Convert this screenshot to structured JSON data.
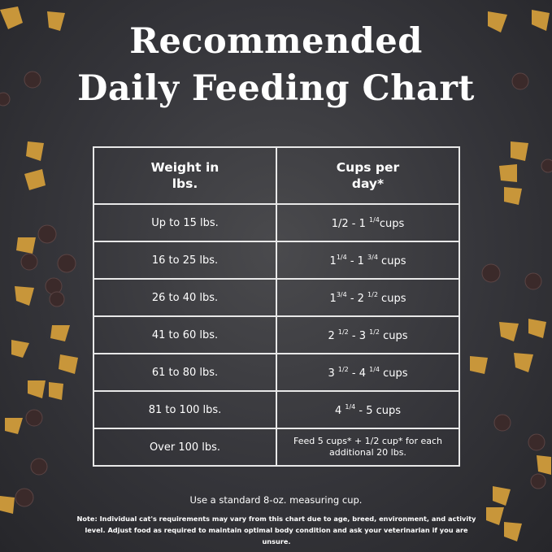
{
  "header": {
    "title": [
      "Recommended",
      "Daily Feeding Chart"
    ]
  },
  "table": {
    "columns": [
      "Weight in lbs.",
      "Cups per day*"
    ],
    "rows": [
      [
        "Up to 15 lbs.",
        [
          "1/2 - 1 ",
          {
            "sup": "1/4"
          },
          "cups"
        ]
      ],
      [
        "16 to 25 lbs.",
        [
          "1",
          {
            "sup": "1/4"
          },
          " - 1 ",
          {
            "sup": "3/4"
          },
          " cups"
        ]
      ],
      [
        "26 to 40 lbs.",
        [
          "1",
          {
            "sup": "3/4"
          },
          " - 2 ",
          {
            "sup": "1/2"
          },
          " cups"
        ]
      ],
      [
        "41 to 60 lbs.",
        [
          "2 ",
          {
            "sup": "1/2"
          },
          " - 3 ",
          {
            "sup": "1/2"
          },
          " cups"
        ]
      ],
      [
        "61 to 80 lbs.",
        [
          "3 ",
          {
            "sup": "1/2"
          },
          " - 4 ",
          {
            "sup": "1/4"
          },
          " cups"
        ]
      ],
      [
        "81 to 100 lbs.",
        [
          "4 ",
          {
            "sup": "1/4"
          },
          " - 5 cups"
        ]
      ],
      [
        "Over 100 lbs.",
        [
          "Feed 5 cups* + 1/2 cup* for each additional 20 lbs."
        ]
      ]
    ]
  },
  "footer": {
    "instruction": "Use a standard 8-oz. measuring cup.",
    "note": "Note: Individual cat's requirements may vary from this chart due to age, breed, environment, and activity level. Adjust food as required to maintain optimal body condition and ask your veterinarian if you are unsure."
  }
}
